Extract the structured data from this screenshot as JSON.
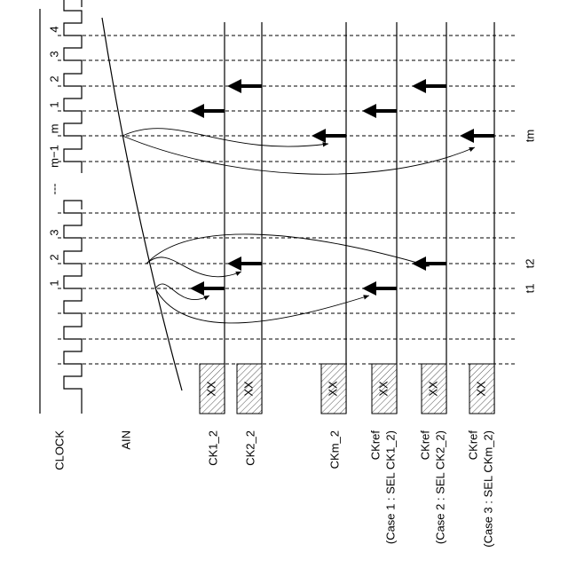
{
  "clock_labels": {
    "top": [
      "4",
      "3",
      "2",
      "1",
      "m",
      "m−1"
    ],
    "gap": "---",
    "bottom": [
      "3",
      "2",
      "1"
    ]
  },
  "time_labels": [
    "tm",
    "t2",
    "t1"
  ],
  "signals": [
    {
      "label": "CLOCK"
    },
    {
      "label": "AIN"
    },
    {
      "label": "CK1_2",
      "box": "XX"
    },
    {
      "label": "CK2_2",
      "box": "XX"
    },
    {
      "label": "CKm_2",
      "box": "XX"
    },
    {
      "label": "CKref",
      "sublabel": "(Case 1 : SEL CK1_2)",
      "box": "XX"
    },
    {
      "label": "CKref",
      "sublabel": "(Case 2 : SEL CK2_2)",
      "box": "XX"
    },
    {
      "label": "CKref",
      "sublabel": "(Case 3 : SEL CKm_2)",
      "box": "XX"
    }
  ]
}
